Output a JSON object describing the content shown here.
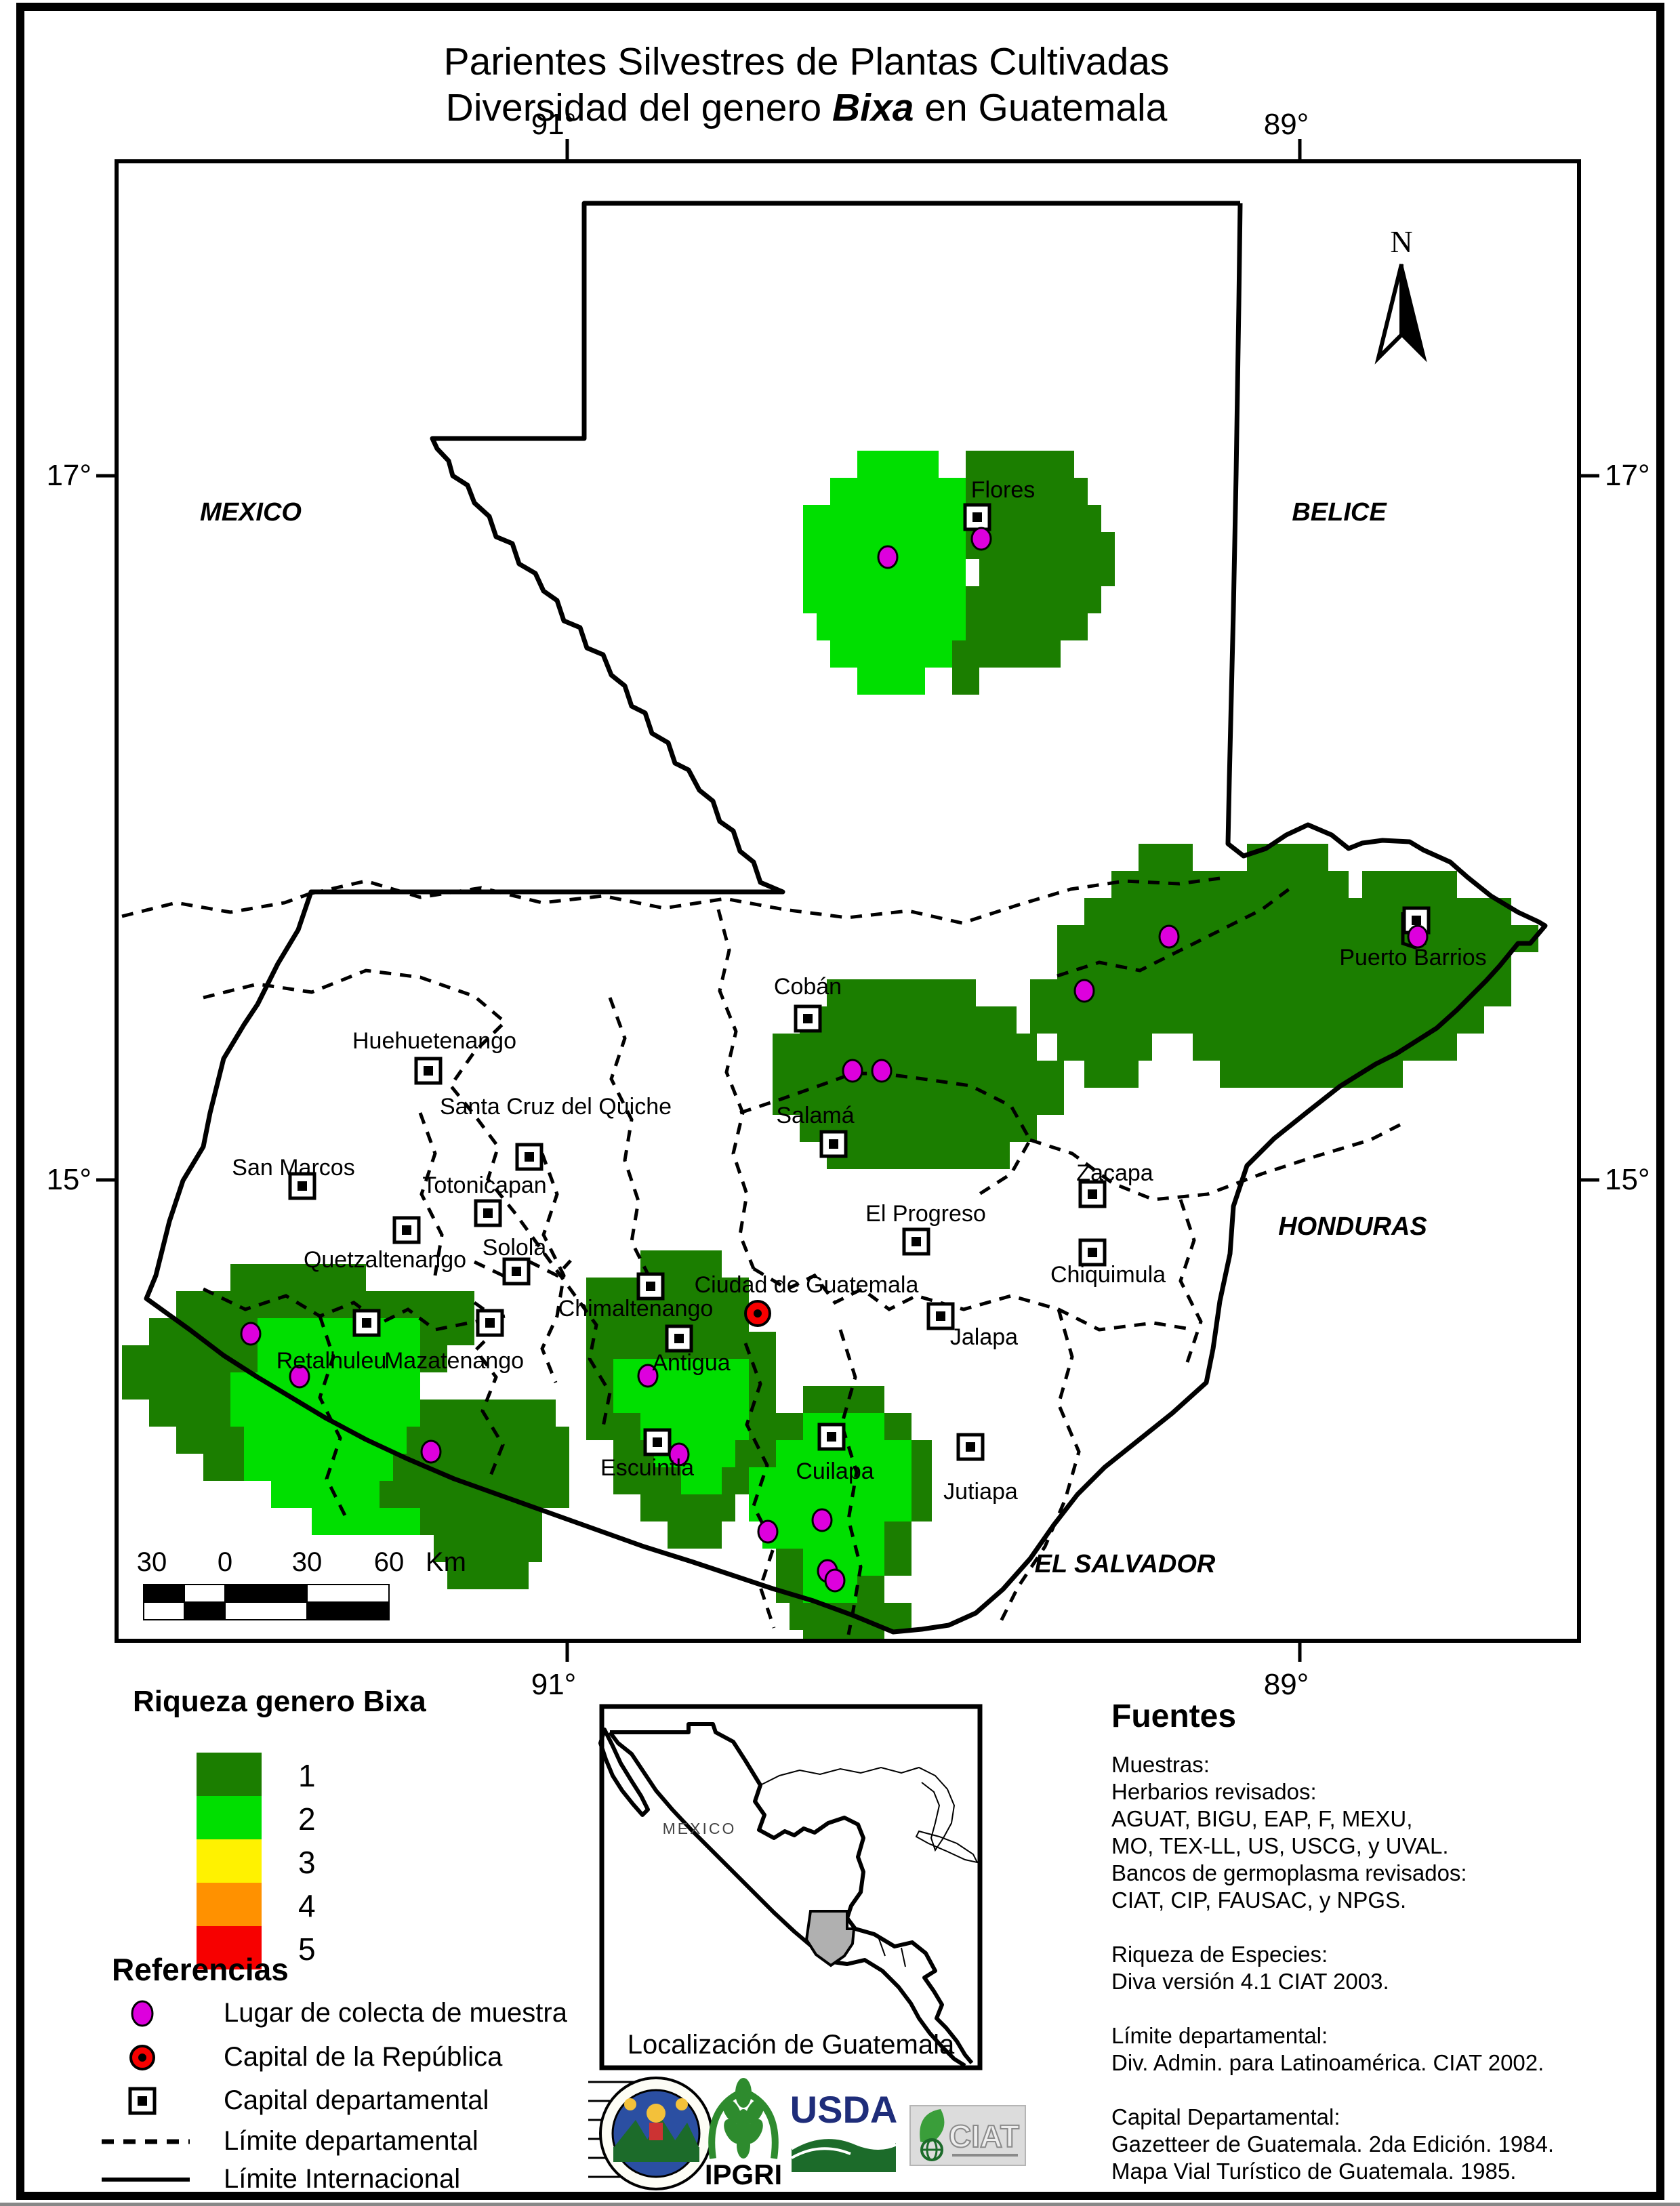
{
  "title": {
    "line1": "Parientes Silvestres de Plantas Cultivadas",
    "line2_prefix": "Diversidad del genero ",
    "line2_genus": "Bixa",
    "line2_suffix": " en Guatemala"
  },
  "map": {
    "north_label": "N",
    "lon_west": "91°",
    "lon_east": "89°",
    "lat_north": "17°",
    "lat_south": "15°",
    "countries": [
      {
        "name": "MEXICO"
      },
      {
        "name": "BELICE"
      },
      {
        "name": "HONDURAS"
      },
      {
        "name": "EL SALVADOR"
      }
    ],
    "cities": [
      {
        "name": "Flores"
      },
      {
        "name": "Cobán"
      },
      {
        "name": "Salamá"
      },
      {
        "name": "Puerto Barrios"
      },
      {
        "name": "Huehuetenango"
      },
      {
        "name": "Santa Cruz del Quiche"
      },
      {
        "name": "San Marcos"
      },
      {
        "name": "Totonicapan"
      },
      {
        "name": "Quetzaltenango"
      },
      {
        "name": "Solola"
      },
      {
        "name": "Retalhuleu"
      },
      {
        "name": "Mazatenango"
      },
      {
        "name": "Chimaltenango"
      },
      {
        "name": "Antigua"
      },
      {
        "name": "Ciudad de Guatemala"
      },
      {
        "name": "Escuintla"
      },
      {
        "name": "Cuilapa"
      },
      {
        "name": "Jutiapa"
      },
      {
        "name": "Jalapa"
      },
      {
        "name": "El Progreso"
      },
      {
        "name": "Zacapa"
      },
      {
        "name": "Chiquimula"
      }
    ]
  },
  "scalebar": {
    "labels": [
      "30",
      "0",
      "30",
      "60"
    ],
    "unit": "Km"
  },
  "legend": {
    "title": "Riqueza genero Bixa",
    "classes": [
      {
        "value": "1",
        "color": "#1b7e00"
      },
      {
        "value": "2",
        "color": "#00df00"
      },
      {
        "value": "3",
        "color": "#fff200"
      },
      {
        "value": "4",
        "color": "#ff9100"
      },
      {
        "value": "5",
        "color": "#f70000"
      }
    ]
  },
  "references": {
    "title": "Referencias",
    "items": [
      {
        "icon": "collection-dot-icon",
        "label": "Lugar de colecta de muestra"
      },
      {
        "icon": "capital-republic-icon",
        "label": "Capital de la República"
      },
      {
        "icon": "capital-departamental-icon",
        "label": "Capital departamental"
      },
      {
        "icon": "departmental-limit-icon",
        "label": "Límite departamental"
      },
      {
        "icon": "international-limit-icon",
        "label": "Límite Internacional"
      }
    ]
  },
  "inset": {
    "caption": "Localización de Guatemala",
    "label": "MEXICO"
  },
  "sources": {
    "title": "Fuentes",
    "lines": [
      "Muestras:",
      "Herbarios revisados:",
      "AGUAT, BIGU, EAP, F, MEXU,",
      "MO, TEX-LL, US, USCG, y UVAL.",
      "Bancos de germoplasma revisados:",
      "CIAT, CIP,  FAUSAC, y NPGS.",
      "",
      "Riqueza de Especies:",
      "Diva versión 4.1 CIAT 2003.",
      "",
      "Límite departamental:",
      "Div. Admin. para Latinoamérica.  CIAT 2002.",
      "",
      "Capital Departamental:",
      "Gazetteer de Guatemala.  2da  Edición.  1984.",
      "Mapa Vial Turístico de Guatemala.  1985."
    ]
  },
  "logos": {
    "ipgri": "IPGRI",
    "usda": "USDA",
    "ciat": "CIAT"
  },
  "colors": {
    "richness1": "#1b7e00",
    "richness2": "#00df00",
    "collection_dot": "#dd00dd",
    "capital_red": "#f70000",
    "inset_guatemala_gray": "#b0b0b0"
  }
}
